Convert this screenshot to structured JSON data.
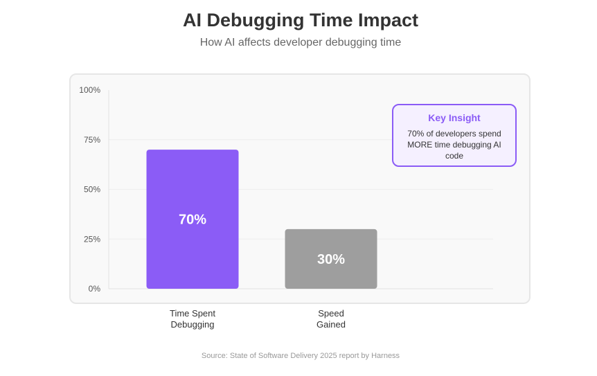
{
  "header": {
    "title": "AI Debugging Time Impact",
    "subtitle": "How AI affects developer debugging time"
  },
  "insight": {
    "title": "Key Insight",
    "text": "70% of developers spend MORE time debugging AI code",
    "border_color": "#8b5cf6",
    "background_color": "#f5f0ff"
  },
  "footer": {
    "source": "Source: State of Software Delivery 2025 report by Harness"
  },
  "chart_data": {
    "type": "bar",
    "title": "",
    "xlabel": "",
    "ylabel": "",
    "categories": [
      "Time Spent\nDebugging",
      "Speed\nGained"
    ],
    "values": [
      70,
      30
    ],
    "data_labels": [
      "70%",
      "30%"
    ],
    "colors": [
      "#8b5cf6",
      "#9e9e9e"
    ],
    "y_ticks": [
      0,
      25,
      50,
      75,
      100
    ],
    "y_tick_labels": [
      "0%",
      "25%",
      "50%",
      "75%",
      "100%"
    ],
    "ylim": [
      0,
      100
    ],
    "grid": true,
    "legend": "none"
  }
}
